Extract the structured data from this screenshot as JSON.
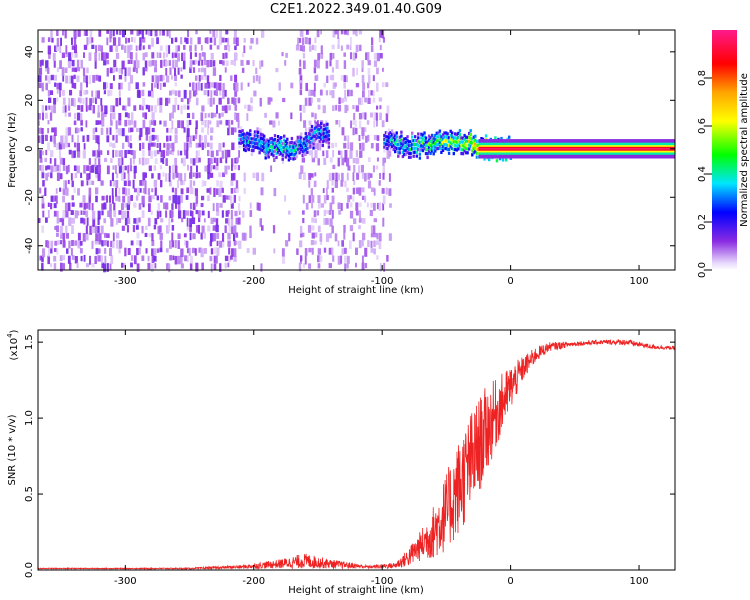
{
  "title": "C2E1.2022.349.01.40.G09",
  "chart_data": [
    {
      "type": "heatmap",
      "xlabel": "Height of straight line (km)",
      "ylabel": "Frequency (Hz)",
      "xlim": [
        -368,
        128
      ],
      "ylim": [
        -50,
        49
      ],
      "xticks": [
        -300,
        -200,
        -100,
        0,
        100
      ],
      "yticks": [
        -40,
        -20,
        0,
        20,
        40
      ],
      "colorbar": {
        "label": "Normalized spectral amplitude",
        "range": [
          0.0,
          1.0
        ],
        "ticks": [
          "0.0",
          "0.2",
          "0.4",
          "0.6",
          "0.8"
        ]
      },
      "noise_regions": [
        {
          "x": [
            -368,
            -215
          ],
          "level": "dense"
        },
        {
          "x": [
            -215,
            -195
          ],
          "level": "sparse"
        },
        {
          "x": [
            -195,
            -165
          ],
          "level": "very sparse"
        },
        {
          "x": [
            -165,
            -100
          ],
          "level": "medium"
        },
        {
          "x": [
            -100,
            -95
          ],
          "level": "sparse"
        }
      ],
      "signal_trace": [
        {
          "x": -212,
          "y": 5,
          "amp": 0.3
        },
        {
          "x": -200,
          "y": 2,
          "amp": 0.35
        },
        {
          "x": -180,
          "y": 0,
          "amp": 0.4
        },
        {
          "x": -165,
          "y": 1,
          "amp": 0.35
        },
        {
          "x": -150,
          "y": 6,
          "amp": 0.3
        },
        {
          "x": -100,
          "y": 4,
          "amp": 0.3
        },
        {
          "x": -90,
          "y": 2,
          "amp": 0.35
        },
        {
          "x": -70,
          "y": 1,
          "amp": 0.45
        },
        {
          "x": -50,
          "y": 3,
          "amp": 0.55
        },
        {
          "x": -35,
          "y": 3,
          "amp": 0.6
        },
        {
          "x": -20,
          "y": 0,
          "amp": 0.8
        },
        {
          "x": 0,
          "y": 0,
          "amp": 0.95
        },
        {
          "x": 128,
          "y": 0,
          "amp": 0.95
        }
      ]
    },
    {
      "type": "line",
      "xlabel": "Height of straight line (km)",
      "ylabel": "SNR (10 * v/v)",
      "yscale_label": "(x10^4)",
      "yscale_base": "(x10",
      "yscale_exp": "4",
      "yscale_close": ")",
      "xlim": [
        -368,
        128
      ],
      "ylim": [
        0.0,
        1.58
      ],
      "xticks": [
        -300,
        -200,
        -100,
        0,
        100
      ],
      "yticks": [
        "0.0",
        "0.5",
        "1.0",
        "1.5"
      ],
      "series": [
        {
          "color": "#ee2222",
          "x": [
            -368,
            -300,
            -250,
            -210,
            -180,
            -160,
            -140,
            -110,
            -90,
            -80,
            -70,
            -60,
            -50,
            -40,
            -30,
            -20,
            -10,
            0,
            10,
            20,
            30,
            50,
            70,
            90,
            110,
            128
          ],
          "y": [
            0.01,
            0.01,
            0.01,
            0.02,
            0.04,
            0.06,
            0.04,
            0.02,
            0.03,
            0.08,
            0.16,
            0.25,
            0.38,
            0.55,
            0.72,
            0.9,
            1.05,
            1.2,
            1.33,
            1.42,
            1.47,
            1.49,
            1.5,
            1.5,
            1.47,
            1.46
          ],
          "noise": [
            0.003,
            0.003,
            0.004,
            0.012,
            0.03,
            0.05,
            0.03,
            0.01,
            0.02,
            0.06,
            0.1,
            0.18,
            0.26,
            0.32,
            0.34,
            0.3,
            0.22,
            0.15,
            0.08,
            0.05,
            0.03,
            0.015,
            0.015,
            0.02,
            0.015,
            0.012
          ]
        }
      ]
    }
  ]
}
